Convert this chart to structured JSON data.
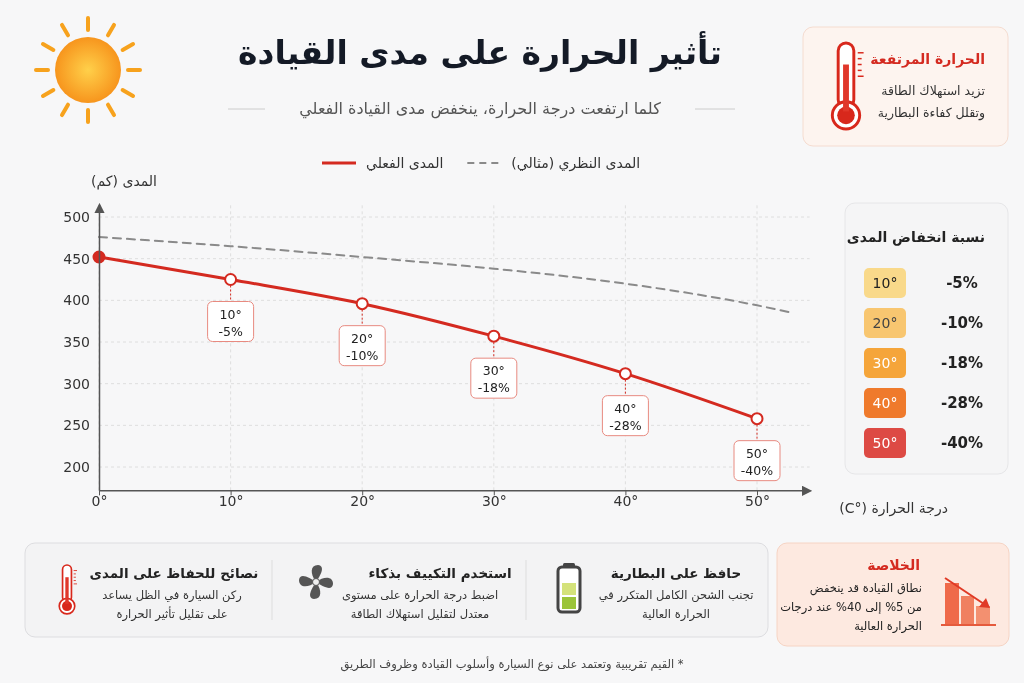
{
  "chart_data": {
    "type": "line",
    "title": "تأثير الحرارة على مدى القيادة",
    "subtitle": "كلما ارتفعت درجة الحرارة، ينخفض مدى القيادة الفعلي",
    "xlabel": "درجة الحرارة (°C)",
    "ylabel": "المدى (كم)",
    "xlim": [
      0,
      54
    ],
    "ylim": [
      172,
      515
    ],
    "xticks": [
      {
        "value": 0,
        "label": "0°"
      },
      {
        "value": 10,
        "label": "10°"
      },
      {
        "value": 20,
        "label": "20°"
      },
      {
        "value": 30,
        "label": "30°"
      },
      {
        "value": 40,
        "label": "40°"
      },
      {
        "value": 50,
        "label": "50°"
      }
    ],
    "yticks": [
      200,
      250,
      300,
      350,
      400,
      450,
      500
    ],
    "grid": true,
    "legend": "top",
    "marker": "circle",
    "series": [
      {
        "name": "المدى الفعلي",
        "color": "#d42a20",
        "line_style": "solid",
        "x": [
          0,
          10,
          20,
          30,
          40,
          50
        ],
        "values": [
          452,
          425,
          396,
          357,
          312,
          258
        ]
      },
      {
        "name": "المدى النظري (مثالي)",
        "color": "#8a8a8a",
        "line_style": "dashed",
        "marker": "none",
        "x": [
          0,
          10,
          20,
          30,
          40,
          50,
          52.4
        ],
        "values": [
          476,
          465,
          452,
          438,
          420,
          394,
          386
        ]
      }
    ],
    "annotations": [
      "الحرارة المرتفعة",
      "تزيد استهلاك الطاقة\nوتقلل كفاءة البطارية",
      "نسبة انخفاض المدى",
      "10°",
      "-5%",
      "20°",
      "-10%",
      "30°",
      "-18%",
      "40°",
      "-28%",
      "50°",
      "-40%",
      "حافظ على البطارية",
      "تجنب الشحن الكامل المتكرر في\nالحرارة العالية",
      "استخدم التكييف بذكاء",
      "اضبط درجة الحرارة على مستوى\nمعتدل لتقليل استهلاك الطاقة",
      "نصائح للحفاظ على المدى",
      "ركن السيارة في الظل يساعد\nعلى تقليل تأثير الحرارة",
      "الخلاصة",
      "نطاق القيادة قد ينخفض\nمن 5% إلى 40% عند درجات\nالحرارة العالية",
      "* القيم تقريبية وتعتمد على نوع السيارة وأسلوب القيادة وظروف الطريق",
      {
        "text": "10°\n-5%",
        "x": 10,
        "y": 425
      },
      {
        "text": "20°\n-10%",
        "x": 20,
        "y": 396
      },
      {
        "text": "30°\n-18%",
        "x": 30,
        "y": 357
      },
      {
        "text": "40°\n-28%",
        "x": 40,
        "y": 312
      },
      {
        "text": "50°\n-40%",
        "x": 50,
        "y": 258
      }
    ]
  }
}
